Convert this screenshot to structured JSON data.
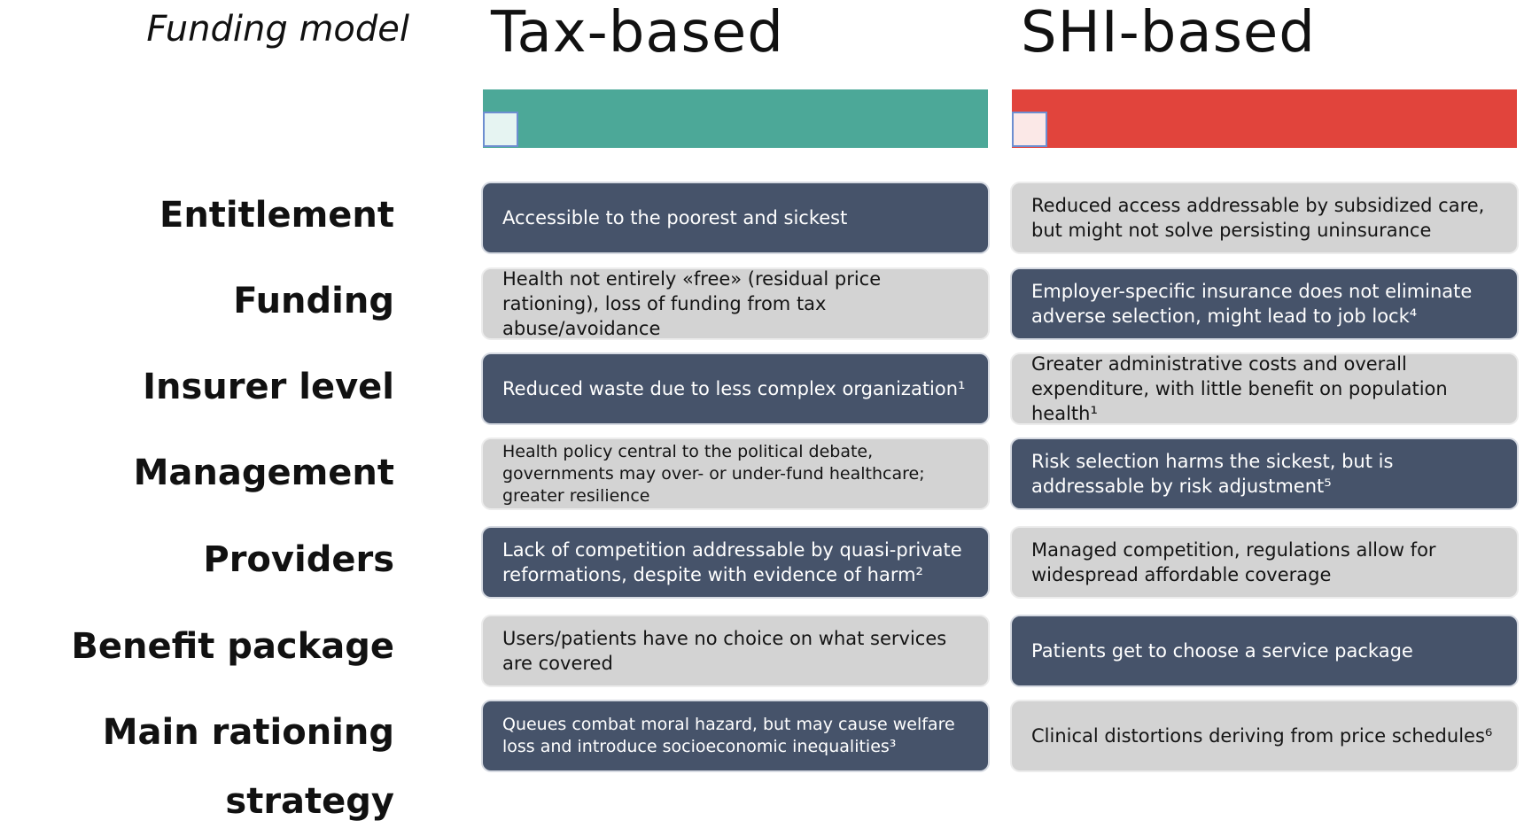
{
  "header": {
    "corner_title": "Funding model",
    "columns": [
      "Tax-based",
      "SHI-based"
    ]
  },
  "colors": {
    "tax_bar": "#4ca898",
    "shi_bar": "#e1443c",
    "dark_cell": "#46536a",
    "light_cell": "#d3d3d3"
  },
  "rows": [
    {
      "label": "Entitlement",
      "tax": "Accessible to the poorest and sickest",
      "shi": "Reduced access addressable by subsidized care, but might not solve persisting uninsurance"
    },
    {
      "label": "Funding",
      "tax": "Health not entirely «free» (residual price rationing), loss of funding from tax abuse/avoidance",
      "shi": "Employer-specific insurance does not eliminate adverse selection, might lead to job lock⁴"
    },
    {
      "label": "Insurer level",
      "tax": "Reduced waste due to less complex organization¹",
      "shi": "Greater administrative costs and overall expenditure, with little benefit on population health¹"
    },
    {
      "label": "Management",
      "tax": "Health policy central to the political debate, governments may over- or under-fund healthcare; greater resilience",
      "shi": "Risk selection harms the sickest, but is addressable by risk adjustment⁵"
    },
    {
      "label": "Providers",
      "tax": "Lack of competition addressable by quasi-private reformations, despite with evidence of harm²",
      "shi": "Managed competition, regulations allow for widespread affordable coverage"
    },
    {
      "label": "Benefit package",
      "tax": "Users/patients have no choice on what services are covered",
      "shi": "Patients get to choose a service package"
    },
    {
      "label": "Main rationing strategy",
      "tax": "Queues combat moral hazard, but may cause welfare loss and introduce socioeconomic inequalities³",
      "shi": "Clinical distortions deriving from price schedules⁶"
    }
  ]
}
